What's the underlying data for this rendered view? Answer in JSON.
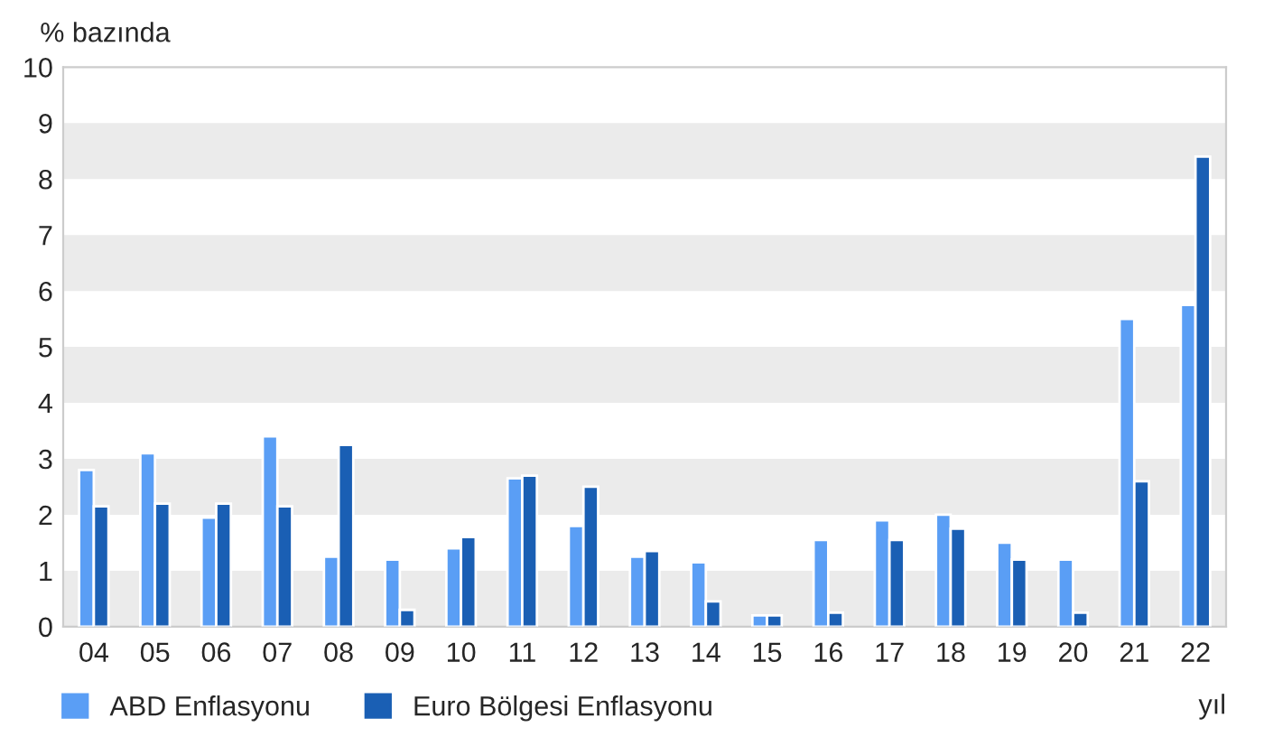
{
  "chart_data": {
    "type": "bar",
    "ylabel": "% bazında",
    "xlabel": "yıl",
    "categories": [
      "04",
      "05",
      "06",
      "07",
      "08",
      "09",
      "10",
      "11",
      "12",
      "13",
      "14",
      "15",
      "16",
      "17",
      "18",
      "19",
      "20",
      "21",
      "22"
    ],
    "series": [
      {
        "name": "ABD Enflasyonu",
        "color": "#5a9ef5",
        "values": [
          2.8,
          3.1,
          1.95,
          3.4,
          1.25,
          1.2,
          1.4,
          2.65,
          1.8,
          1.25,
          1.15,
          0.2,
          1.55,
          1.9,
          2.0,
          1.5,
          1.2,
          5.5,
          5.75
        ]
      },
      {
        "name": "Euro Bölgesi Enflasyonu",
        "color": "#1a5fb4",
        "values": [
          2.15,
          2.2,
          2.2,
          2.15,
          3.25,
          0.3,
          1.6,
          2.7,
          2.5,
          1.35,
          0.45,
          0.2,
          0.25,
          1.55,
          1.75,
          1.2,
          0.25,
          2.6,
          8.4
        ]
      }
    ],
    "ylim": [
      0,
      10
    ],
    "yticks": [
      0,
      1,
      2,
      3,
      4,
      5,
      6,
      7,
      8,
      9,
      10
    ],
    "bands": [
      {
        "axis": "y",
        "from": 0,
        "to": 1,
        "color": "#ebebeb"
      },
      {
        "axis": "y",
        "from": 2,
        "to": 3,
        "color": "#ebebeb"
      },
      {
        "axis": "y",
        "from": 4,
        "to": 5,
        "color": "#ebebeb"
      },
      {
        "axis": "y",
        "from": 6,
        "to": 7,
        "color": "#ebebeb"
      },
      {
        "axis": "y",
        "from": 8,
        "to": 9,
        "color": "#ebebeb"
      }
    ],
    "legend": "bottom left"
  }
}
